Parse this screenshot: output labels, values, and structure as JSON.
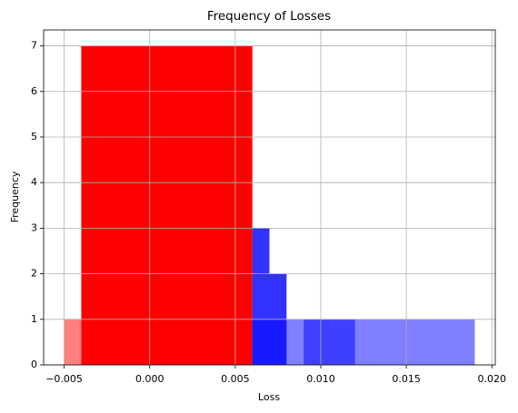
{
  "chart_data": {
    "type": "histogram",
    "title": "Frequency of Losses",
    "xlabel": "Loss",
    "ylabel": "Frequency",
    "series": [
      {
        "color": "#ff0000",
        "opacity": 0.5,
        "bins": [
          -0.005,
          -0.004
        ],
        "counts": [
          1
        ]
      },
      {
        "color": "#ff0000",
        "opacity": 1,
        "bins": [
          -0.004,
          0.006
        ],
        "counts": [
          7
        ]
      },
      {
        "color": "#0000ff",
        "opacity": 0.8,
        "bins": [
          0.006,
          0.007,
          0.008
        ],
        "counts": [
          3,
          2
        ]
      },
      {
        "color": "#0000ff",
        "opacity": 0.5,
        "bins": [
          0.008,
          0.009,
          0.012,
          0.019
        ],
        "counts": [
          1,
          1,
          1
        ]
      },
      {
        "color": "#0000ff",
        "opacity": 0.5,
        "bins": [
          0.006,
          0.008,
          0.009,
          0.012
        ],
        "counts": [
          1,
          0,
          1
        ]
      }
    ],
    "xlim": [
      -0.0062,
      0.0202
    ],
    "ylim": [
      0,
      7.35
    ],
    "xticks": [
      {
        "value": -0.005,
        "label": "−0.005"
      },
      {
        "value": 0,
        "label": "0.000"
      },
      {
        "value": 0.005,
        "label": "0.005"
      },
      {
        "value": 0.01,
        "label": "0.010"
      },
      {
        "value": 0.015,
        "label": "0.015"
      },
      {
        "value": 0.02,
        "label": "0.020"
      }
    ],
    "yticks": [
      0,
      1,
      2,
      3,
      4,
      5,
      6,
      7
    ],
    "grid": true
  }
}
